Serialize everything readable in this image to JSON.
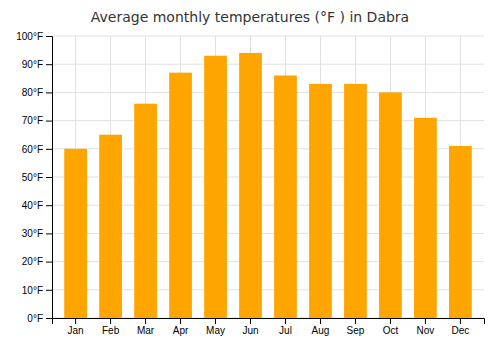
{
  "chart_data": {
    "type": "bar",
    "title": "Average monthly temperatures (°F ) in Dabra",
    "categories": [
      "Jan",
      "Feb",
      "Mar",
      "Apr",
      "May",
      "Jun",
      "Jul",
      "Aug",
      "Sep",
      "Oct",
      "Nov",
      "Dec"
    ],
    "values": [
      60,
      65,
      76,
      87,
      93,
      94,
      86,
      83,
      83,
      80,
      71,
      61
    ],
    "color": "#FFA500",
    "ylim": [
      0,
      100
    ],
    "yticks": [
      {
        "value": 0,
        "label": "0°F"
      },
      {
        "value": 10,
        "label": "10°F"
      },
      {
        "value": 20,
        "label": "20°F"
      },
      {
        "value": 30,
        "label": "30°F"
      },
      {
        "value": 40,
        "label": "40°F"
      },
      {
        "value": 50,
        "label": "50°F"
      },
      {
        "value": 60,
        "label": "60°F"
      },
      {
        "value": 70,
        "label": "70°F"
      },
      {
        "value": 80,
        "label": "80°F"
      },
      {
        "value": 90,
        "label": "90°F"
      },
      {
        "value": 100,
        "label": "100°F"
      }
    ],
    "grid": true
  }
}
